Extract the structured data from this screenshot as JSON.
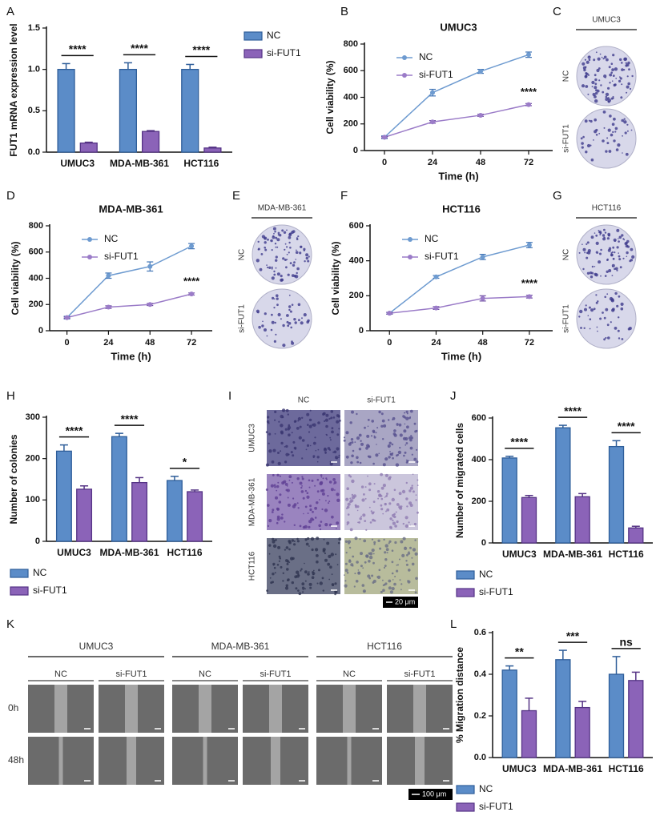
{
  "chart_data": [
    {
      "type": "bar",
      "panel": "A",
      "ylabel": "FUT1 mRNA expression level",
      "categories": [
        "UMUC3",
        "MDA-MB-361",
        "HCT116"
      ],
      "series": [
        {
          "name": "NC",
          "color": "#5b8cc8",
          "values": [
            1.0,
            1.0,
            1.0
          ],
          "errors": [
            0.07,
            0.08,
            0.06
          ]
        },
        {
          "name": "si-FUT1",
          "color": "#8b63b8",
          "values": [
            0.11,
            0.25,
            0.05
          ],
          "errors": [
            0.01,
            0.01,
            0.01
          ]
        }
      ],
      "ylim": [
        0,
        1.5
      ],
      "yticks": [
        {
          "value": 0,
          "label": "0.0"
        },
        0.5,
        {
          "value": 1,
          "label": "1.0"
        },
        1.5
      ],
      "significance": [
        "****",
        "****",
        "****"
      ],
      "legend": "right"
    },
    {
      "type": "line",
      "panel": "B",
      "title": "UMUC3",
      "xlabel": "Time (h)",
      "ylabel": "Cell viability (%)",
      "x": [
        0,
        24,
        48,
        72
      ],
      "series": [
        {
          "name": "NC",
          "color": "#6e9bd0",
          "values": [
            100,
            435,
            595,
            720
          ],
          "errors": [
            10,
            25,
            15,
            20
          ]
        },
        {
          "name": "si-FUT1",
          "color": "#9b7cc8",
          "values": [
            100,
            215,
            265,
            345
          ],
          "errors": [
            5,
            10,
            8,
            8
          ]
        }
      ],
      "xlim": [
        -10,
        84
      ],
      "xticks": [
        0,
        24,
        48,
        72
      ],
      "ylim": [
        0,
        800
      ],
      "yticks": [
        0,
        200,
        400,
        600,
        800
      ],
      "annotation": "****",
      "legend": "upper left"
    },
    {
      "type": "line",
      "panel": "D",
      "title": "MDA-MB-361",
      "xlabel": "Time (h)",
      "ylabel": "Cell viability (%)",
      "x": [
        0,
        24,
        48,
        72
      ],
      "series": [
        {
          "name": "NC",
          "color": "#6e9bd0",
          "values": [
            100,
            420,
            490,
            645
          ],
          "errors": [
            10,
            20,
            35,
            20
          ]
        },
        {
          "name": "si-FUT1",
          "color": "#9b7cc8",
          "values": [
            100,
            180,
            200,
            280
          ],
          "errors": [
            5,
            10,
            8,
            8
          ]
        }
      ],
      "xlim": [
        -10,
        84
      ],
      "xticks": [
        0,
        24,
        48,
        72
      ],
      "ylim": [
        0,
        800
      ],
      "yticks": [
        0,
        200,
        400,
        600,
        800
      ],
      "annotation": "****",
      "legend": "upper left"
    },
    {
      "type": "line",
      "panel": "F",
      "title": "HCT116",
      "xlabel": "Time (h)",
      "ylabel": "Cell viability (%)",
      "x": [
        0,
        24,
        48,
        72
      ],
      "series": [
        {
          "name": "NC",
          "color": "#6e9bd0",
          "values": [
            100,
            308,
            422,
            490
          ],
          "errors": [
            5,
            8,
            15,
            15
          ]
        },
        {
          "name": "si-FUT1",
          "color": "#9b7cc8",
          "values": [
            100,
            130,
            185,
            195
          ],
          "errors": [
            5,
            8,
            15,
            8
          ]
        }
      ],
      "xlim": [
        -10,
        84
      ],
      "xticks": [
        0,
        24,
        48,
        72
      ],
      "ylim": [
        0,
        600
      ],
      "yticks": [
        0,
        200,
        400,
        600
      ],
      "annotation": "****",
      "legend": "upper left"
    },
    {
      "type": "bar",
      "panel": "H",
      "ylabel": "Number of colonies",
      "categories": [
        "UMUC3",
        "MDA-MB-361",
        "HCT116"
      ],
      "series": [
        {
          "name": "NC",
          "color": "#5b8cc8",
          "values": [
            218,
            253,
            147
          ],
          "errors": [
            15,
            8,
            10
          ]
        },
        {
          "name": "si-FUT1",
          "color": "#8b63b8",
          "values": [
            126,
            142,
            120
          ],
          "errors": [
            8,
            12,
            4
          ]
        }
      ],
      "ylim": [
        0,
        300
      ],
      "yticks": [
        0,
        100,
        200,
        300
      ],
      "significance": [
        "****",
        "****",
        "*"
      ],
      "legend": "below"
    },
    {
      "type": "bar",
      "panel": "J",
      "ylabel": "Number of migrated cells",
      "categories": [
        "UMUC3",
        "MDA-MB-361",
        "HCT116"
      ],
      "series": [
        {
          "name": "NC",
          "color": "#5b8cc8",
          "values": [
            408,
            553,
            463
          ],
          "errors": [
            8,
            12,
            28
          ]
        },
        {
          "name": "si-FUT1",
          "color": "#8b63b8",
          "values": [
            218,
            222,
            72
          ],
          "errors": [
            10,
            15,
            8
          ]
        }
      ],
      "ylim": [
        0,
        600
      ],
      "yticks": [
        0,
        200,
        400,
        600
      ],
      "significance": [
        "****",
        "****",
        "****"
      ],
      "legend": "below"
    },
    {
      "type": "bar",
      "panel": "L",
      "ylabel": "% Migration distance",
      "categories": [
        "UMUC3",
        "MDA-MB-361",
        "HCT116"
      ],
      "series": [
        {
          "name": "NC",
          "color": "#5b8cc8",
          "values": [
            0.42,
            0.47,
            0.4
          ],
          "errors": [
            0.02,
            0.045,
            0.085
          ]
        },
        {
          "name": "si-FUT1",
          "color": "#8b63b8",
          "values": [
            0.225,
            0.24,
            0.37
          ],
          "errors": [
            0.06,
            0.03,
            0.04
          ]
        }
      ],
      "ylim": [
        0,
        0.6
      ],
      "yticks": [
        {
          "value": 0,
          "label": "0.0"
        },
        0.2,
        0.4,
        0.6
      ],
      "significance": [
        "**",
        "***",
        "ns"
      ],
      "legend": "below"
    }
  ],
  "image_panels": [
    {
      "panel": "C",
      "title": "UMUC3",
      "rows": [
        "NC",
        "si-FUT1"
      ]
    },
    {
      "panel": "E",
      "title": "MDA-MB-361",
      "rows": [
        "NC",
        "si-FUT1"
      ]
    },
    {
      "panel": "G",
      "title": "HCT116",
      "rows": [
        "NC",
        "si-FUT1"
      ]
    },
    {
      "panel": "I",
      "columns": [
        "NC",
        "si-FUT1"
      ],
      "rows": [
        "UMUC3",
        "MDA-MB-361",
        "HCT116"
      ],
      "scale_bar": "20 μm"
    },
    {
      "panel": "K",
      "groups": [
        "UMUC3",
        "MDA-MB-361",
        "HCT116"
      ],
      "columns": [
        "NC",
        "si-FUT1"
      ],
      "rows": [
        "0h",
        "48h"
      ],
      "scale_bar": "100 μm"
    }
  ]
}
